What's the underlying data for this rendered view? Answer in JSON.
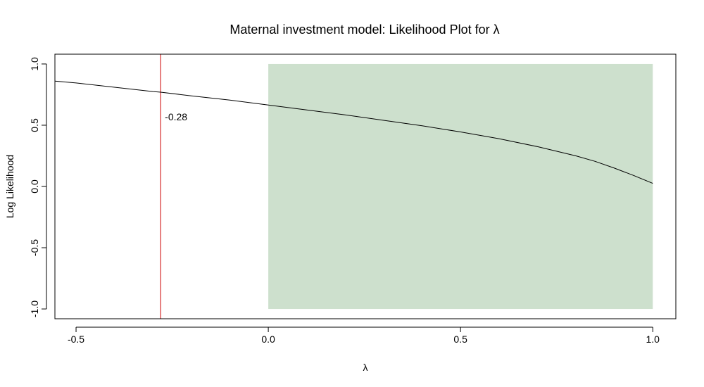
{
  "chart_data": {
    "type": "line",
    "title": "Maternal investment model: Likelihood Plot for λ",
    "xlabel": "λ",
    "ylabel": "Log Likelihood",
    "xlim": [
      -0.555,
      1.06
    ],
    "ylim": [
      -1.08,
      1.08
    ],
    "xticks": [
      -0.5,
      0.0,
      0.5,
      1.0
    ],
    "xtick_labels": [
      "-0.5",
      "0.0",
      "0.5",
      "1.0"
    ],
    "yticks": [
      -1.0,
      -0.5,
      0.0,
      0.5,
      1.0
    ],
    "ytick_labels": [
      "-1.0",
      "-0.5",
      "0.0",
      "0.5",
      "1.0"
    ],
    "grid": false,
    "legend": "none",
    "series": [
      {
        "x": [
          -0.555,
          -0.5,
          -0.4,
          -0.3,
          -0.28,
          -0.2,
          -0.1,
          0.0,
          0.1,
          0.2,
          0.3,
          0.4,
          0.5,
          0.6,
          0.7,
          0.8,
          0.85,
          0.9,
          0.95,
          1.0
        ],
        "y": [
          0.86,
          0.845,
          0.81,
          0.775,
          0.77,
          0.74,
          0.705,
          0.665,
          0.625,
          0.585,
          0.54,
          0.495,
          0.445,
          0.39,
          0.325,
          0.25,
          0.205,
          0.15,
          0.09,
          0.025
        ],
        "color": "#000000"
      }
    ],
    "vline": {
      "x": -0.28,
      "label": "-0.28",
      "label_y": 0.57,
      "color": "#cc0000"
    },
    "shaded_region": {
      "x": [
        0.0,
        1.0
      ],
      "y": [
        -1.0,
        1.0
      ],
      "color": "#cde0cd"
    }
  }
}
